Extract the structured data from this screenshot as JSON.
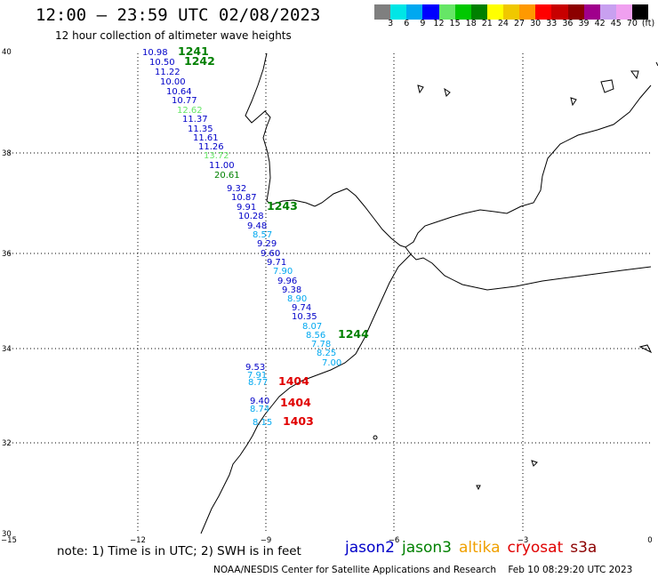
{
  "header": {
    "title": "12:00 – 23:59 UTC 02/08/2023",
    "subtitle": "12 hour collection of altimeter wave heights"
  },
  "legend": {
    "colors": [
      "#7f7f7f",
      "#00e6e6",
      "#00a8f0",
      "#0000ff",
      "#66e666",
      "#00c800",
      "#008000",
      "#ffff00",
      "#f0c800",
      "#ff9900",
      "#ff0000",
      "#c80000",
      "#8c0000",
      "#a0008c",
      "#c8a0f0",
      "#f0a0f0",
      "#000000"
    ],
    "labels": [
      "3",
      "6",
      "9",
      "12",
      "15",
      "18",
      "21",
      "24",
      "27",
      "30",
      "33",
      "36",
      "39",
      "42",
      "45",
      "70",
      "(ft)"
    ]
  },
  "map": {
    "lat_ticks": [
      "40",
      "38",
      "36",
      "34",
      "32",
      "30"
    ],
    "lon_ticks": [
      "−15",
      "−12",
      "−9",
      "−6",
      "−3",
      "0"
    ]
  },
  "observations": [
    {
      "value": "10.98",
      "color": "#0000c8"
    },
    {
      "value": "10.50",
      "color": "#0000c8"
    },
    {
      "value": "11.22",
      "color": "#0000c8"
    },
    {
      "value": "10.00",
      "color": "#0000c8"
    },
    {
      "value": "10.64",
      "color": "#0000c8"
    },
    {
      "value": "10.77",
      "color": "#0000c8"
    },
    {
      "value": "12.62",
      "color": "#66e666"
    },
    {
      "value": "11.37",
      "color": "#0000c8"
    },
    {
      "value": "11.35",
      "color": "#0000c8"
    },
    {
      "value": "11.61",
      "color": "#0000c8"
    },
    {
      "value": "11.26",
      "color": "#0000c8"
    },
    {
      "value": "13.72",
      "color": "#66e666"
    },
    {
      "value": "11.00",
      "color": "#0000c8"
    },
    {
      "value": "20.61",
      "color": "#008000"
    },
    {
      "value": "9.32",
      "color": "#0000c8"
    },
    {
      "value": "10.87",
      "color": "#0000c8"
    },
    {
      "value": "9.91",
      "color": "#0000c8"
    },
    {
      "value": "10.28",
      "color": "#0000c8"
    },
    {
      "value": "9.48",
      "color": "#0000c8"
    },
    {
      "value": "8.57",
      "color": "#00a8f0"
    },
    {
      "value": "9.29",
      "color": "#0000c8"
    },
    {
      "value": "9.60",
      "color": "#0000c8"
    },
    {
      "value": "9.71",
      "color": "#0000c8"
    },
    {
      "value": "7.90",
      "color": "#00a8f0"
    },
    {
      "value": "9.96",
      "color": "#0000c8"
    },
    {
      "value": "9.38",
      "color": "#0000c8"
    },
    {
      "value": "8.90",
      "color": "#00a8f0"
    },
    {
      "value": "9.74",
      "color": "#0000c8"
    },
    {
      "value": "10.35",
      "color": "#0000c8"
    },
    {
      "value": "8.07",
      "color": "#00a8f0"
    },
    {
      "value": "8.56",
      "color": "#00a8f0"
    },
    {
      "value": "7.78",
      "color": "#00a8f0"
    },
    {
      "value": "8.25",
      "color": "#00a8f0"
    },
    {
      "value": "7.00",
      "color": "#00a8f0"
    },
    {
      "value": "9.53",
      "color": "#0000c8"
    },
    {
      "value": "7.91",
      "color": "#00a8f0"
    },
    {
      "value": "8.77",
      "color": "#00a8f0"
    },
    {
      "value": "9.40",
      "color": "#0000c8"
    },
    {
      "value": "8.74",
      "color": "#00a8f0"
    },
    {
      "value": "8.15",
      "color": "#00a8f0"
    }
  ],
  "passes": [
    {
      "label": "1241",
      "color": "#008000"
    },
    {
      "label": "1242",
      "color": "#008000"
    },
    {
      "label": "1243",
      "color": "#008000"
    },
    {
      "label": "1244",
      "color": "#008000"
    },
    {
      "label": "1404",
      "color": "#e00000"
    },
    {
      "label": "1404",
      "color": "#e00000"
    },
    {
      "label": "1403",
      "color": "#e00000"
    }
  ],
  "footer": {
    "note": "note:  1) Time is in UTC;  2) SWH is in feet",
    "satellites": [
      {
        "name": "jason2",
        "color": "#0000c8"
      },
      {
        "name": "jason3",
        "color": "#008000"
      },
      {
        "name": "altika",
        "color": "#f0a000"
      },
      {
        "name": "cryosat",
        "color": "#e00000"
      },
      {
        "name": "s3a",
        "color": "#8c0000"
      }
    ],
    "credit": "NOAA/NESDIS Center for Satellite Applications and Research    Feb 10 08:29:20 UTC 2023"
  }
}
